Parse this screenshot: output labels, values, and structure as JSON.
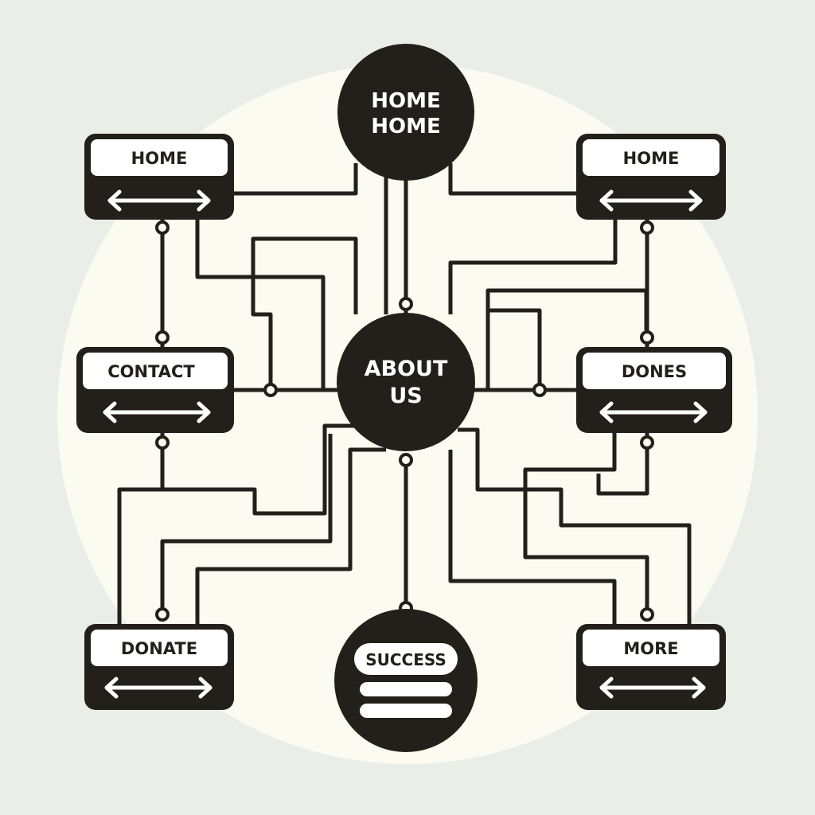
{
  "colors": {
    "background": "#e9eee9",
    "disc": "#fbfbf1",
    "ink": "#231f1a",
    "box_fill": "#ffffff"
  },
  "hubs": {
    "top": {
      "line1": "HOME",
      "line2": "HOME"
    },
    "center": {
      "line1": "ABOUT",
      "line2": "US"
    },
    "bottom": {
      "label": "SUCCESS",
      "icon": "menu-icon"
    }
  },
  "boxes": {
    "top_left": {
      "label": "HOME",
      "icon": "double-arrow-icon"
    },
    "top_right": {
      "label": "HOME",
      "icon": "double-arrow-icon"
    },
    "mid_left": {
      "label": "CONTACT",
      "icon": "double-arrow-icon"
    },
    "mid_right": {
      "label": "DONES",
      "icon": "double-arrow-icon"
    },
    "bottom_left": {
      "label": "DONATE",
      "icon": "double-arrow-icon"
    },
    "bottom_right": {
      "label": "MORE",
      "icon": "double-arrow-icon"
    }
  }
}
